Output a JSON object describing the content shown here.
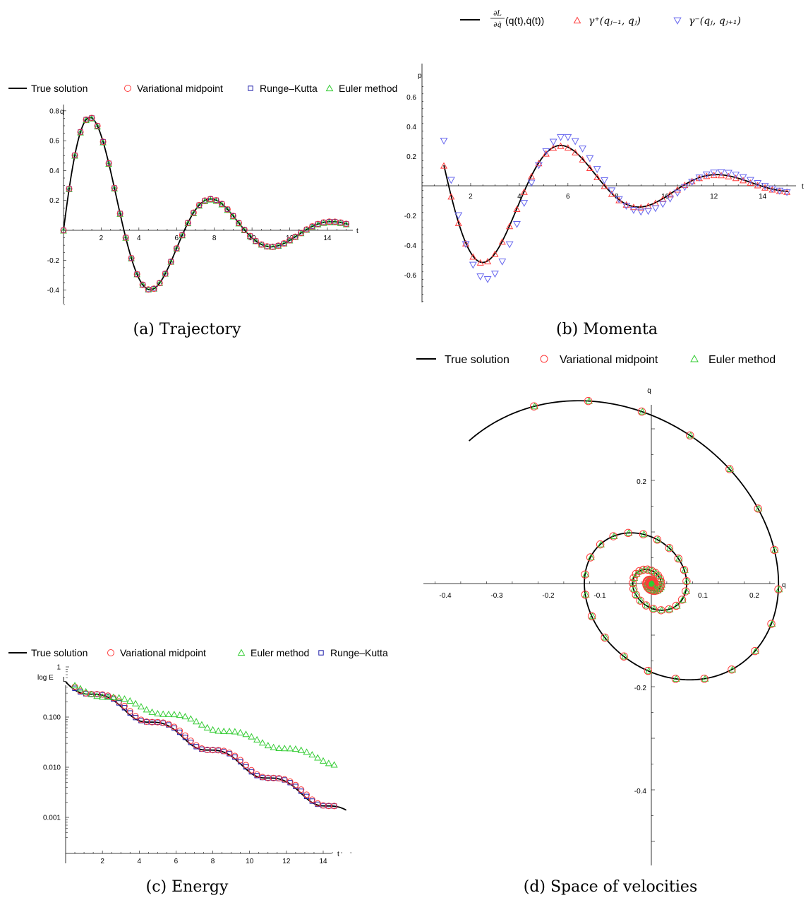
{
  "colors": {
    "true": "#000000",
    "midpoint": "#ff3b3b",
    "rk": "#2222aa",
    "euler": "#33cc33",
    "gm": "#6666ee",
    "gp": "#ff3b3b"
  },
  "chart_data": [
    {
      "id": "a",
      "type": "scatter",
      "caption": "(a) Trajectory",
      "xlabel": "t",
      "ylabel": "q",
      "xlim": [
        0,
        15.3
      ],
      "ylim": [
        -0.5,
        0.82
      ],
      "xticks": [
        "2",
        "4",
        "6",
        "8",
        "10",
        "12",
        "14"
      ],
      "yticks": [
        "-0.4",
        "-0.2",
        "0.2",
        "0.4",
        "0.6",
        "0.8"
      ],
      "legend": [
        "True solution",
        "Variational midpoint",
        "Runge–Kutta",
        "Euler method"
      ],
      "dt": 0.3,
      "n": 50
    },
    {
      "id": "b",
      "type": "scatter",
      "caption": "(b) Momenta",
      "xlabel": "t",
      "ylabel": "p",
      "xlim": [
        0,
        15.3
      ],
      "ylim": [
        -0.78,
        0.72
      ],
      "xticks": [
        "2",
        "4",
        "6",
        "8",
        "10",
        "12",
        "14"
      ],
      "yticks": [
        "-0.6",
        "-0.4",
        "-0.2",
        "0.2",
        "0.4",
        "0.6"
      ],
      "legend": [
        "(q(t),q̇(t))",
        "γ⁺(qⱼ₋₁, qⱼ)",
        "γ⁻(qⱼ, qⱼ₊₁)"
      ],
      "legend_frac": {
        "num": "∂L",
        "den": "∂q̇"
      }
    },
    {
      "id": "c",
      "type": "scatter",
      "caption": "(c) Energy",
      "xlabel": "t",
      "ylabel": "log E",
      "ylabel_sub": "L",
      "yscale": "log",
      "xlim": [
        0,
        15.5
      ],
      "ylim": [
        0.00035,
        1.4
      ],
      "xticks": [
        "2",
        "4",
        "6",
        "8",
        "10",
        "12",
        "14"
      ],
      "yticks": [
        "1",
        "0.100",
        "0.010",
        "0.001"
      ],
      "legend": [
        "True solution",
        "Variational midpoint",
        "Euler method",
        "Runge–Kutta"
      ]
    },
    {
      "id": "d",
      "type": "scatter",
      "caption": "(d) Space of velocities",
      "xlabel": "q",
      "ylabel": "q̇",
      "xlim": [
        -0.42,
        0.235
      ],
      "ylim": [
        -0.53,
        0.33
      ],
      "xticks": [
        "-0.4",
        "-0.3",
        "-0.2",
        "-0.1",
        "0.1",
        "0.2"
      ],
      "yticks": [
        "-0.4",
        "-0.2",
        "0.2"
      ],
      "legend": [
        "True solution",
        "Variational midpoint",
        "Euler method"
      ]
    }
  ]
}
